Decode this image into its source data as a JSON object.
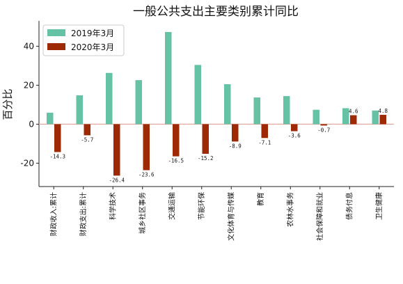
{
  "chart_data": {
    "type": "bar",
    "title": "一般公共支出主要类别累计同比",
    "ylabel": "百分比",
    "xlabel": "",
    "ylim": [
      -32,
      53
    ],
    "yticks": [
      -20,
      0,
      20,
      40
    ],
    "grid": false,
    "legend_position": "top-left",
    "categories": [
      "财政收入:累计",
      "财政支出:累计",
      "科学技术",
      "城乡社区事务",
      "交通运输",
      "节能环保",
      "文化体育与传媒",
      "教育",
      "农林水事务",
      "社会保障和就业",
      "债务付息",
      "卫生健康"
    ],
    "series": [
      {
        "name": "2019年3月",
        "color": "#66c2a5",
        "values": [
          5.9,
          14.8,
          26.3,
          22.6,
          47.3,
          30.4,
          20.5,
          13.7,
          14.4,
          7.4,
          8.2,
          7.0
        ]
      },
      {
        "name": "2020年3月",
        "color": "#9e2a05",
        "values": [
          -14.3,
          -5.7,
          -26.4,
          -23.6,
          -16.5,
          -15.2,
          -8.9,
          -7.1,
          -3.6,
          -0.7,
          4.6,
          4.8
        ]
      }
    ],
    "data_labels": [
      "-14.3",
      "-5.7",
      "-26.4",
      "-23.6",
      "-16.5",
      "-15.2",
      "-8.9",
      "-7.1",
      "-3.6",
      "-0.7",
      "4.6",
      "4.8"
    ],
    "zero_line_color": "#e0a9a0"
  }
}
